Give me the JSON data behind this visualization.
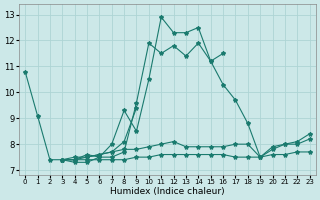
{
  "xlabel": "Humidex (Indice chaleur)",
  "bg_color": "#cce8e8",
  "grid_color": "#aed4d4",
  "line_color": "#1a7a6e",
  "xlim": [
    -0.5,
    23.5
  ],
  "ylim": [
    6.8,
    13.4
  ],
  "xticks": [
    0,
    1,
    2,
    3,
    4,
    5,
    6,
    7,
    8,
    9,
    10,
    11,
    12,
    13,
    14,
    15,
    16,
    17,
    18,
    19,
    20,
    21,
    22,
    23
  ],
  "yticks": [
    7,
    8,
    9,
    10,
    11,
    12,
    13
  ],
  "series": [
    [
      10.8,
      9.1,
      7.4,
      7.4,
      7.4,
      7.6,
      7.5,
      8.0,
      9.3,
      8.5,
      10.5,
      12.9,
      12.3,
      12.3,
      12.5,
      11.2,
      10.3,
      9.7,
      8.8,
      7.5,
      7.8,
      8.0,
      8.1,
      8.4
    ],
    [
      null,
      null,
      null,
      7.4,
      7.3,
      7.3,
      7.5,
      7.5,
      7.7,
      9.6,
      11.9,
      11.5,
      11.8,
      11.4,
      11.9,
      11.2,
      11.5,
      null,
      null,
      null,
      null,
      null,
      null,
      null
    ],
    [
      null,
      null,
      null,
      7.4,
      7.4,
      7.5,
      7.6,
      7.7,
      8.1,
      9.4,
      null,
      null,
      null,
      null,
      null,
      null,
      null,
      null,
      null,
      null,
      null,
      null,
      null,
      null
    ],
    [
      null,
      null,
      null,
      7.4,
      7.5,
      7.5,
      7.6,
      7.7,
      7.8,
      7.8,
      7.9,
      8.0,
      8.1,
      7.9,
      7.9,
      7.9,
      7.9,
      8.0,
      8.0,
      7.5,
      7.9,
      8.0,
      8.0,
      8.2
    ],
    [
      null,
      null,
      null,
      7.4,
      7.4,
      7.4,
      7.4,
      7.4,
      7.4,
      7.5,
      7.5,
      7.6,
      7.6,
      7.6,
      7.6,
      7.6,
      7.6,
      7.5,
      7.5,
      7.5,
      7.6,
      7.6,
      7.7,
      7.7
    ]
  ]
}
